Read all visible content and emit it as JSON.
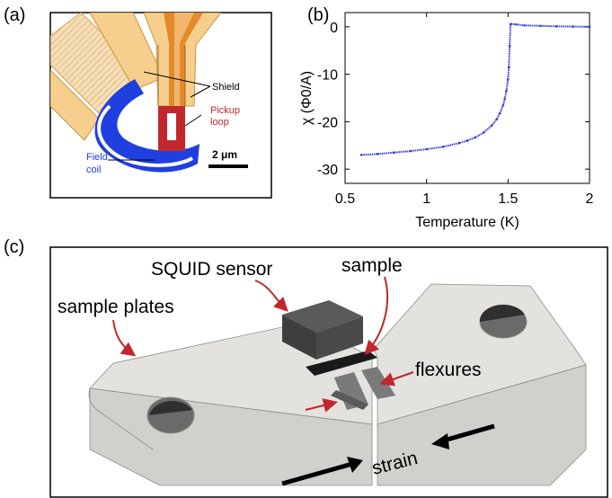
{
  "panel_a": {
    "label": "(a)",
    "shield_label": "Shield",
    "pickup_label_line1": "Pickup",
    "pickup_label_line2": "loop",
    "field_label_line1": "Field",
    "field_label_line2": "coil",
    "scale_bar": "2 μm",
    "colors": {
      "shield": "#f5c983",
      "shield_edge": "#c9953c",
      "pickup": "#c1272d",
      "field_coil": "#1f3fe0",
      "hatch": "#a08a5c",
      "orange": "#e38a2b"
    }
  },
  "panel_b": {
    "label": "(b)",
    "chart_data": {
      "type": "scatter",
      "xlabel": "Temperature (K)",
      "ylabel": "χ (Φ0/A)",
      "xlim": [
        0.5,
        2.0
      ],
      "ylim": [
        -33,
        3
      ],
      "x_ticks": [
        0.5,
        1,
        1.5,
        2
      ],
      "x_tick_labels": [
        "0.5",
        "1",
        "1.5",
        "2"
      ],
      "y_ticks": [
        0,
        -10,
        -20,
        -30
      ],
      "y_tick_labels": [
        "0",
        "-10",
        "-20",
        "-30"
      ],
      "grid": false,
      "series": [
        {
          "color": "#3a3fd6",
          "x": [
            0.6,
            0.7,
            0.8,
            0.9,
            1.0,
            1.1,
            1.2,
            1.25,
            1.3,
            1.35,
            1.4,
            1.43,
            1.45,
            1.47,
            1.48,
            1.49,
            1.5,
            1.505,
            1.51,
            1.515,
            1.52,
            1.55,
            1.6,
            1.7,
            1.8,
            1.9,
            2.0
          ],
          "y": [
            -27.0,
            -26.8,
            -26.5,
            -26.2,
            -25.8,
            -25.3,
            -24.5,
            -24.0,
            -23.3,
            -22.3,
            -20.8,
            -19.5,
            -18.2,
            -16.5,
            -15.2,
            -13.5,
            -11.0,
            -8.5,
            -4.0,
            0.5,
            0.6,
            0.5,
            0.3,
            0.2,
            0.1,
            0.05,
            0.0
          ]
        }
      ]
    }
  },
  "panel_c": {
    "label": "(c)",
    "squid_label": "SQUID sensor",
    "sample_label": "sample",
    "plates_label": "sample plates",
    "flexures_label": "flexures",
    "strain_label": "strain",
    "colors": {
      "plate_top": "#e4e2df",
      "plate_side": "#d2d0cc",
      "sensor": "#4a4a4a",
      "arrow": "#c1272d"
    }
  }
}
